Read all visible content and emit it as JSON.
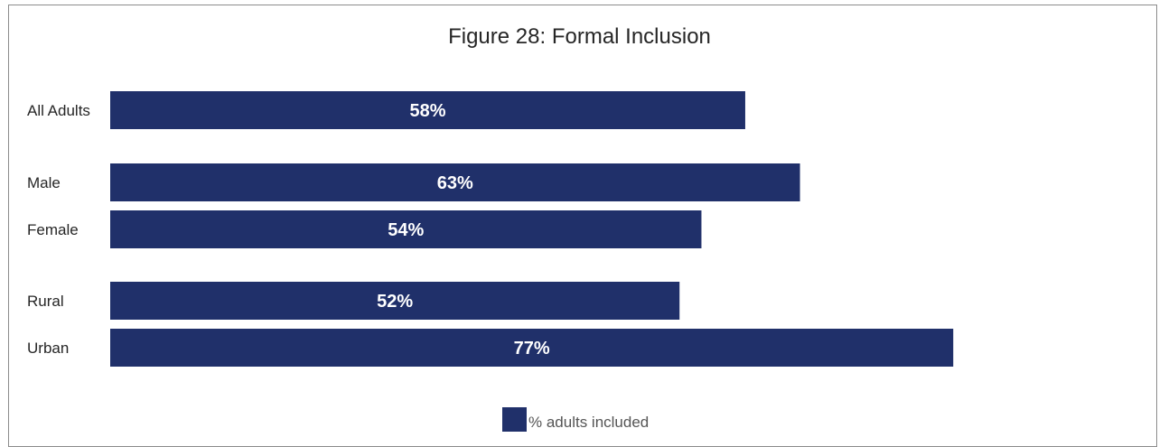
{
  "chart_data": {
    "type": "bar",
    "orientation": "horizontal",
    "title": "Figure 28: Formal Inclusion",
    "categories": [
      "All Adults",
      "Male",
      "Female",
      "Rural",
      "Urban"
    ],
    "series": [
      {
        "name": "% adults included",
        "values": [
          58,
          63,
          54,
          52,
          77
        ],
        "labels": [
          "58%",
          "63%",
          "54%",
          "52%",
          "77%"
        ],
        "color": "#20306a"
      }
    ],
    "grid": false,
    "legend_position": "bottom"
  }
}
